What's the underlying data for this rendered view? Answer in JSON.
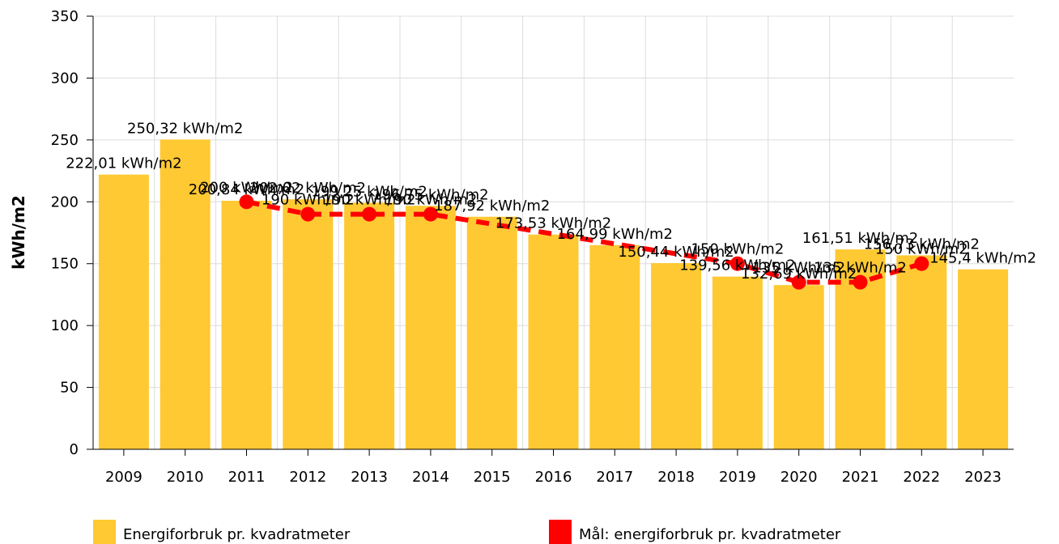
{
  "chart_data": {
    "type": "bar",
    "y_label": "kWh/m2",
    "categories": [
      "2009",
      "2010",
      "2011",
      "2012",
      "2013",
      "2014",
      "2015",
      "2016",
      "2017",
      "2018",
      "2019",
      "2020",
      "2021",
      "2022",
      "2023"
    ],
    "series": [
      {
        "name": "Energiforbruk pr. kvadratmeter",
        "type": "bar",
        "color": "#ffc933",
        "values": [
          222.01,
          250.32,
          200.84,
          202.02,
          199.25,
          196.75,
          187.92,
          173.53,
          164.99,
          150.44,
          139.56,
          132.69,
          161.51,
          156.73,
          145.4
        ],
        "value_labels": [
          "222,01 kWh/m2",
          "250,32 kWh/m2",
          "200,84 kWh/m2",
          "202,02 kWh/m2",
          "199,25 kWh/m2",
          "196,75 kWh/m2",
          "187,92 kWh/m2",
          "173,53 kWh/m2",
          "164,99 kWh/m2",
          "150,44 kWh/m2",
          "139,56 kWh/m2",
          "132,69 kWh/m2",
          "161,51 kWh/m2",
          "156,73 kWh/m2",
          "145,4 kWh/m2"
        ]
      },
      {
        "name": "Mål: energiforbruk pr. kvadratmeter",
        "type": "line",
        "color": "#ff0000",
        "values": [
          null,
          null,
          200,
          190,
          190,
          190,
          182,
          174,
          166,
          158,
          150,
          135,
          135,
          150,
          null
        ],
        "value_labels": [
          null,
          null,
          "200 kWh/m2",
          "190 kWh/m2",
          "190 kWh/m2",
          "190 kWh/m2",
          null,
          null,
          null,
          null,
          "150 kWh/m2",
          "135 kWh/m2",
          "135 kWh/m2",
          "150 kWh/m2",
          null
        ]
      }
    ],
    "ylim": [
      0,
      350
    ],
    "yticks": [
      0,
      50,
      100,
      150,
      200,
      250,
      300,
      350
    ],
    "grid": true
  }
}
